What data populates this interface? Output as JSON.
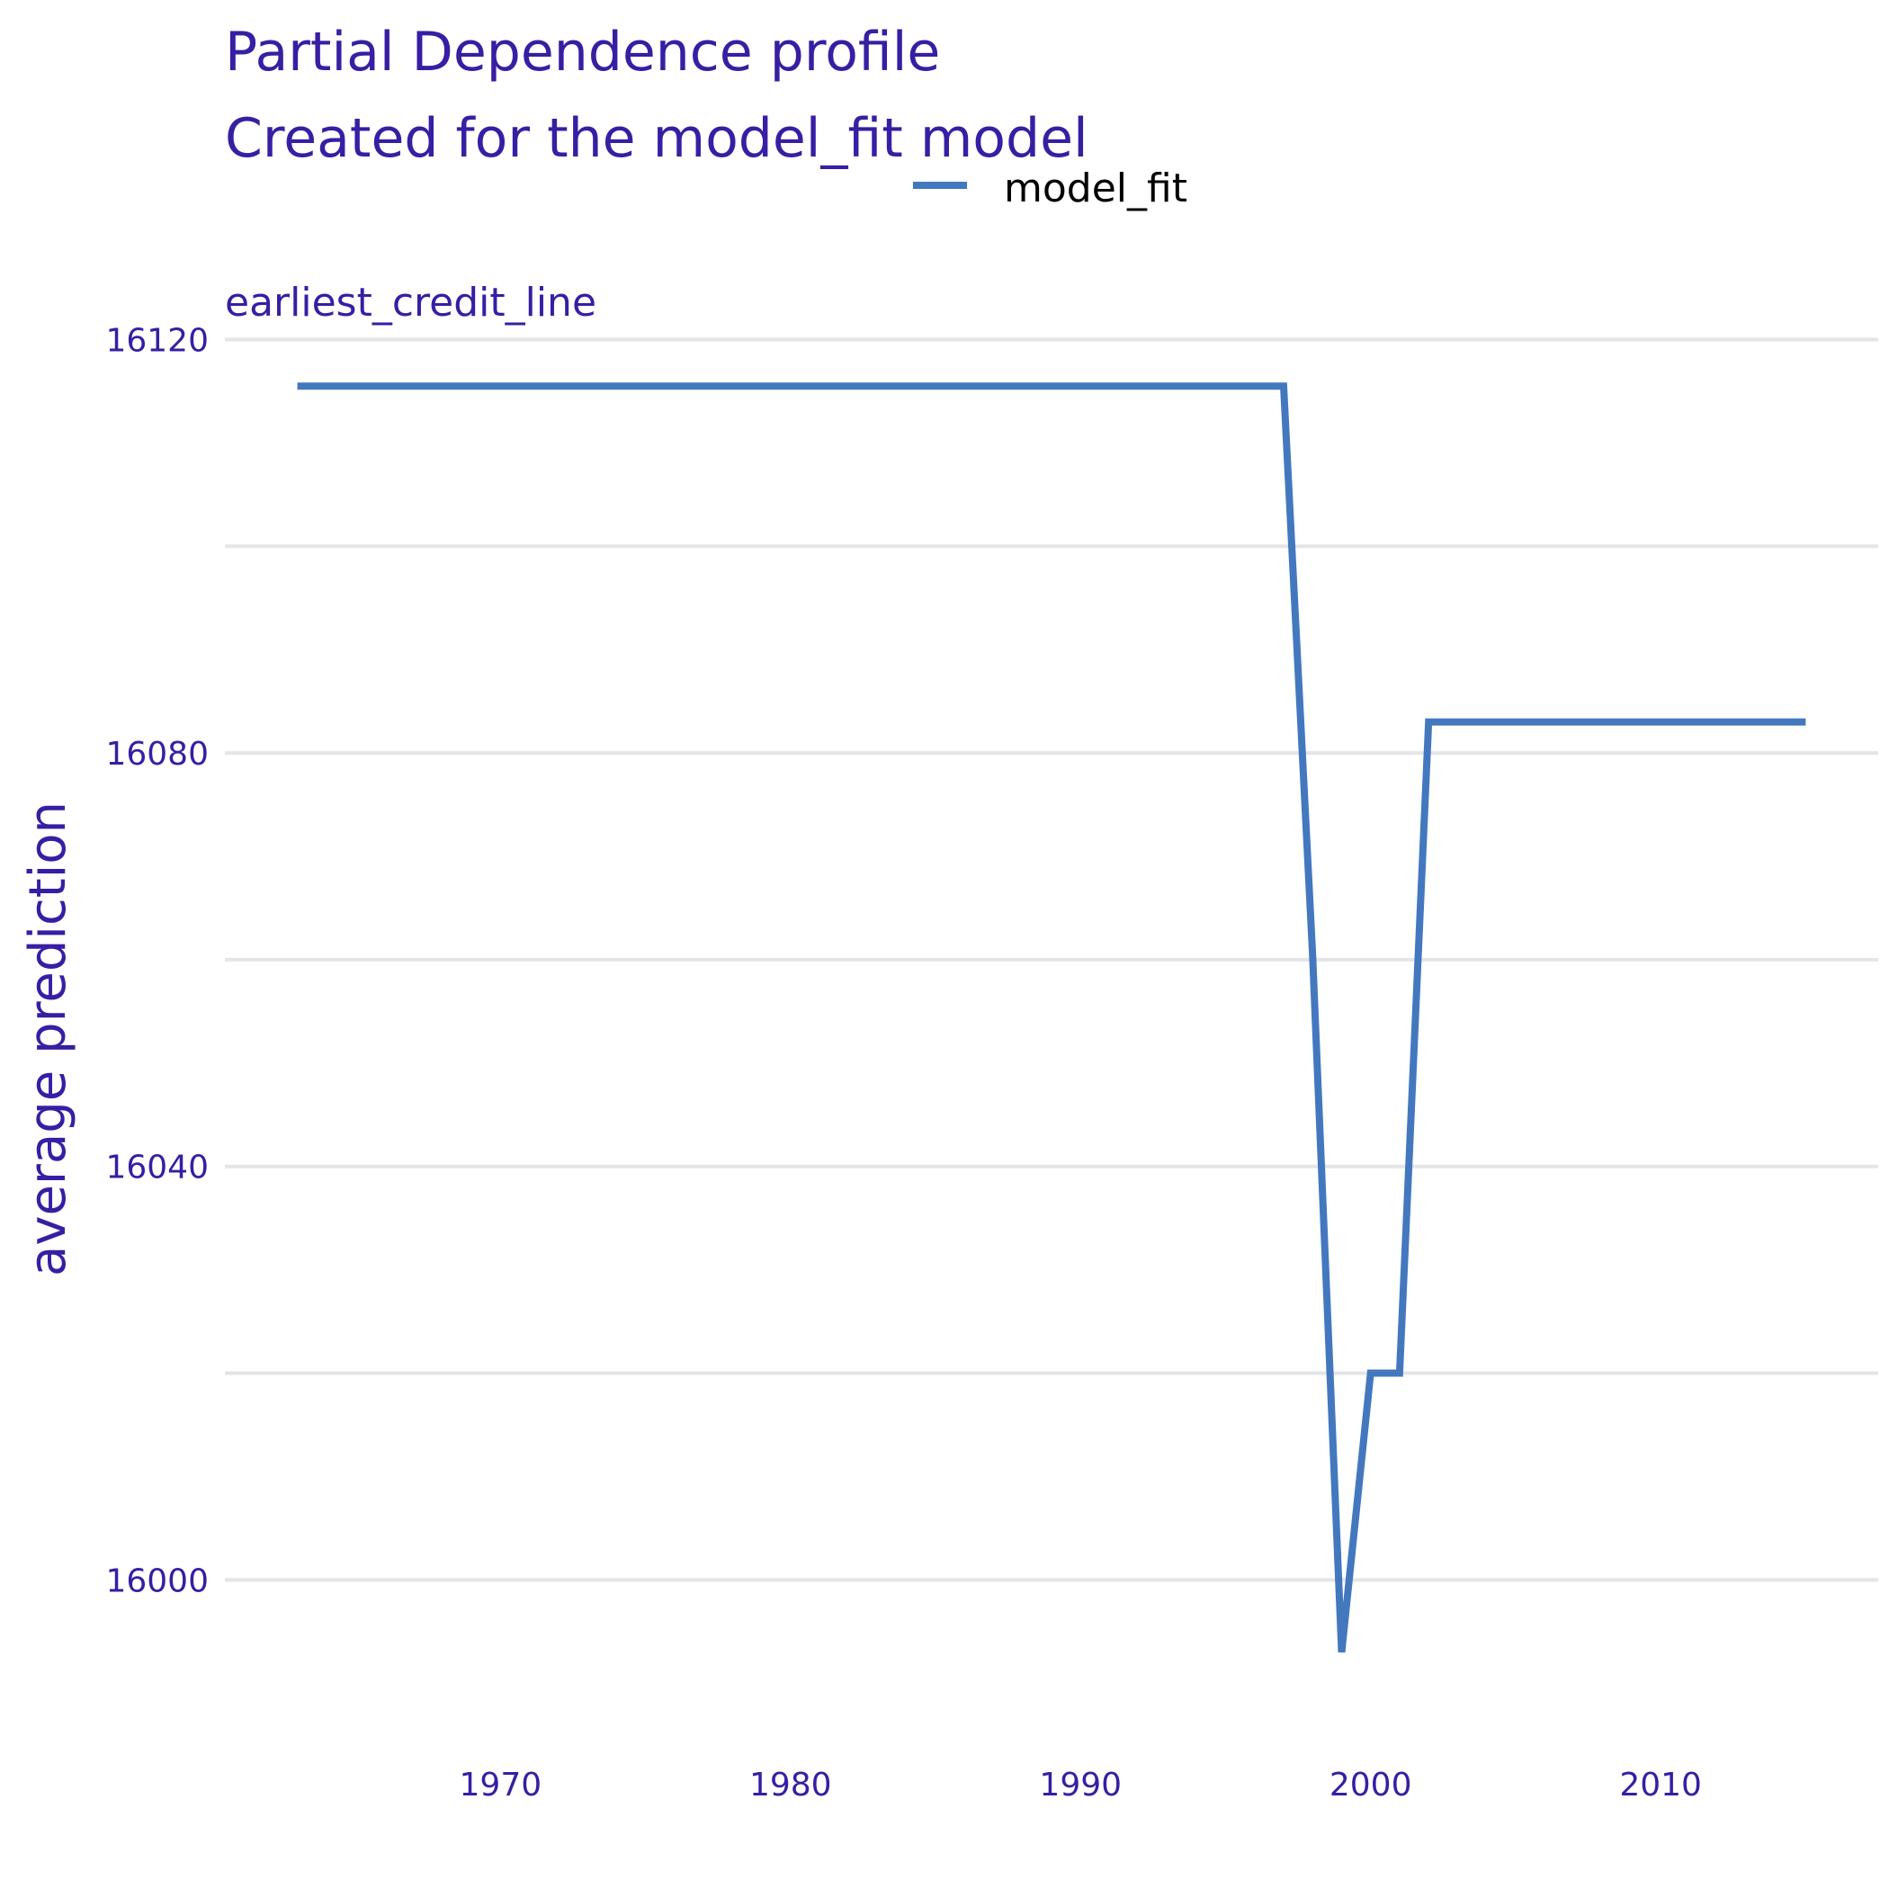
{
  "chart_data": {
    "type": "line",
    "title": "Partial Dependence profile",
    "subtitle": "Created for the model_fit model",
    "facet_label": "earliest_credit_line",
    "ylabel": "average prediction",
    "xlabel": "",
    "xlim": [
      1960.5,
      2017.5
    ],
    "ylim": [
      15987.5,
      16125
    ],
    "x_ticks": [
      1970,
      1980,
      1990,
      2000,
      2010
    ],
    "y_ticks": [
      16000,
      16040,
      16080,
      16120
    ],
    "y_minor_grid": [
      16020,
      16060,
      16100
    ],
    "grid": true,
    "legend_position": "top",
    "series": [
      {
        "name": "model_fit",
        "color": "#4378bf",
        "x": [
          1963,
          1997,
          1998,
          1999,
          2000,
          2001,
          2002,
          2015
        ],
        "y": [
          16115.5,
          16115.5,
          16060.5,
          15993,
          16020,
          16020,
          16083,
          16083
        ]
      }
    ]
  }
}
